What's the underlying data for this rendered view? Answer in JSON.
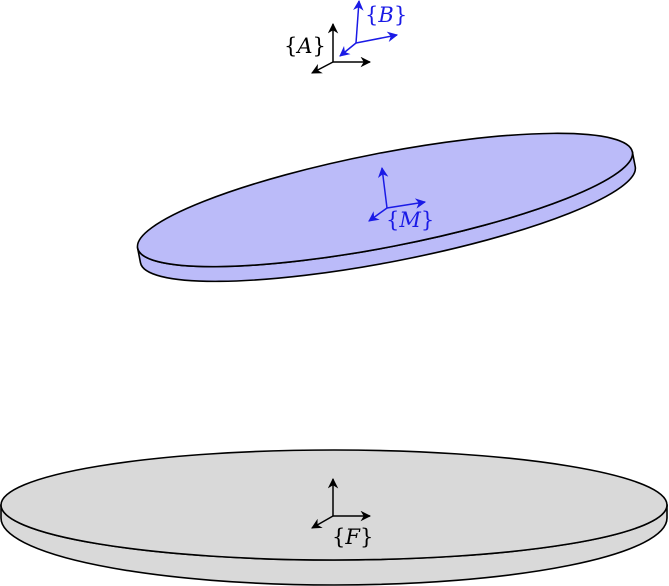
{
  "colors": {
    "moving_platform_fill": "#bbbbf9",
    "fixed_platform_fill": "#d9d9d9",
    "outline": "#000000",
    "blue_frame": "#1a1ae6",
    "black_frame": "#000000"
  },
  "frames": {
    "A": {
      "open": "{",
      "name": "A",
      "close": "}"
    },
    "B": {
      "open": "{",
      "name": "B",
      "close": "}"
    },
    "M": {
      "open": "{",
      "name": "M",
      "close": "}"
    },
    "F": {
      "open": "{",
      "name": "F",
      "close": "}"
    }
  }
}
